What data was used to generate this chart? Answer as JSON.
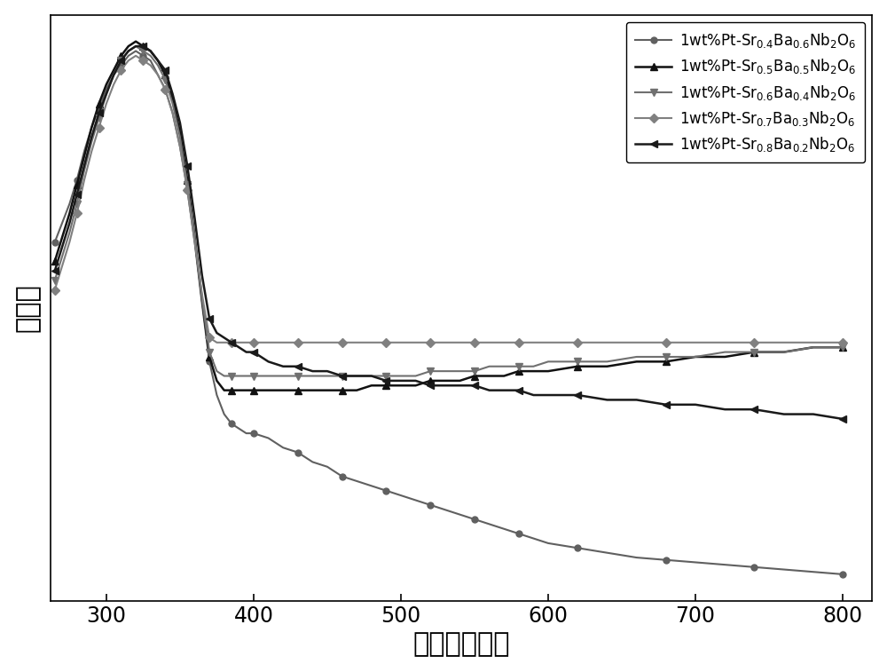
{
  "xlabel": "波长（纳米）",
  "ylabel": "吸光度",
  "xlim": [
    262,
    820
  ],
  "ylim_auto": true,
  "xticks": [
    300,
    400,
    500,
    600,
    700,
    800
  ],
  "background_color": "#ffffff",
  "legend_fontsize": 12,
  "series": [
    {
      "label": "1wt%Pt-Sr$_{0.4}$Ba$_{0.6}$Nb$_2$O$_6$",
      "color": "#606060",
      "marker": "o",
      "markersize": 5,
      "linewidth": 1.5,
      "markevery": 3,
      "x": [
        265,
        270,
        275,
        280,
        285,
        290,
        295,
        300,
        305,
        310,
        315,
        320,
        325,
        330,
        335,
        340,
        345,
        350,
        355,
        360,
        365,
        370,
        375,
        380,
        385,
        390,
        395,
        400,
        410,
        420,
        430,
        440,
        450,
        460,
        470,
        480,
        490,
        500,
        510,
        520,
        530,
        540,
        550,
        560,
        570,
        580,
        590,
        600,
        620,
        640,
        660,
        680,
        700,
        720,
        740,
        760,
        780,
        800
      ],
      "y": [
        0.72,
        0.76,
        0.8,
        0.85,
        0.91,
        0.96,
        1.0,
        1.04,
        1.07,
        1.09,
        1.11,
        1.12,
        1.11,
        1.1,
        1.07,
        1.04,
        0.99,
        0.92,
        0.83,
        0.72,
        0.59,
        0.47,
        0.4,
        0.36,
        0.34,
        0.33,
        0.32,
        0.32,
        0.31,
        0.29,
        0.28,
        0.26,
        0.25,
        0.23,
        0.22,
        0.21,
        0.2,
        0.19,
        0.18,
        0.17,
        0.16,
        0.15,
        0.14,
        0.13,
        0.12,
        0.11,
        0.1,
        0.09,
        0.08,
        0.07,
        0.06,
        0.055,
        0.05,
        0.045,
        0.04,
        0.035,
        0.03,
        0.025
      ]
    },
    {
      "label": "1wt%Pt-Sr$_{0.5}$Ba$_{0.5}$Nb$_2$O$_6$",
      "color": "#111111",
      "marker": "^",
      "markersize": 6,
      "linewidth": 1.8,
      "markevery": 3,
      "x": [
        265,
        270,
        275,
        280,
        285,
        290,
        295,
        300,
        305,
        310,
        315,
        320,
        325,
        330,
        335,
        340,
        345,
        350,
        355,
        360,
        365,
        370,
        375,
        380,
        385,
        390,
        395,
        400,
        410,
        420,
        430,
        440,
        450,
        460,
        470,
        480,
        490,
        500,
        510,
        520,
        530,
        540,
        550,
        560,
        570,
        580,
        590,
        600,
        620,
        640,
        660,
        680,
        700,
        720,
        740,
        760,
        780,
        800
      ],
      "y": [
        0.68,
        0.73,
        0.78,
        0.84,
        0.9,
        0.96,
        1.01,
        1.05,
        1.08,
        1.11,
        1.13,
        1.14,
        1.13,
        1.12,
        1.1,
        1.07,
        1.02,
        0.95,
        0.85,
        0.73,
        0.6,
        0.48,
        0.43,
        0.41,
        0.41,
        0.41,
        0.41,
        0.41,
        0.41,
        0.41,
        0.41,
        0.41,
        0.41,
        0.41,
        0.41,
        0.42,
        0.42,
        0.42,
        0.42,
        0.43,
        0.43,
        0.43,
        0.44,
        0.44,
        0.44,
        0.45,
        0.45,
        0.45,
        0.46,
        0.46,
        0.47,
        0.47,
        0.48,
        0.48,
        0.49,
        0.49,
        0.5,
        0.5
      ]
    },
    {
      "label": "1wt%Pt-Sr$_{0.6}$Ba$_{0.4}$Nb$_2$O$_6$",
      "color": "#707070",
      "marker": "v",
      "markersize": 6,
      "linewidth": 1.5,
      "markevery": 3,
      "x": [
        265,
        270,
        275,
        280,
        285,
        290,
        295,
        300,
        305,
        310,
        315,
        320,
        325,
        330,
        335,
        340,
        345,
        350,
        355,
        360,
        365,
        370,
        375,
        380,
        385,
        390,
        395,
        400,
        410,
        420,
        430,
        440,
        450,
        460,
        470,
        480,
        490,
        500,
        510,
        520,
        530,
        540,
        550,
        560,
        570,
        580,
        590,
        600,
        620,
        640,
        660,
        680,
        700,
        720,
        740,
        760,
        780,
        800
      ],
      "y": [
        0.64,
        0.69,
        0.74,
        0.8,
        0.87,
        0.93,
        0.98,
        1.03,
        1.07,
        1.1,
        1.12,
        1.13,
        1.12,
        1.11,
        1.09,
        1.06,
        1.01,
        0.94,
        0.84,
        0.73,
        0.6,
        0.49,
        0.45,
        0.44,
        0.44,
        0.44,
        0.44,
        0.44,
        0.44,
        0.44,
        0.44,
        0.44,
        0.44,
        0.44,
        0.44,
        0.44,
        0.44,
        0.44,
        0.44,
        0.45,
        0.45,
        0.45,
        0.45,
        0.46,
        0.46,
        0.46,
        0.46,
        0.47,
        0.47,
        0.47,
        0.48,
        0.48,
        0.48,
        0.49,
        0.49,
        0.49,
        0.5,
        0.5
      ]
    },
    {
      "label": "1wt%Pt-Sr$_{0.7}$Ba$_{0.3}$Nb$_2$O$_6$",
      "color": "#808080",
      "marker": "D",
      "markersize": 5,
      "linewidth": 1.5,
      "markevery": 3,
      "x": [
        265,
        270,
        275,
        280,
        285,
        290,
        295,
        300,
        305,
        310,
        315,
        320,
        325,
        330,
        335,
        340,
        345,
        350,
        355,
        360,
        365,
        370,
        375,
        380,
        385,
        390,
        395,
        400,
        410,
        420,
        430,
        440,
        450,
        460,
        470,
        480,
        490,
        500,
        510,
        520,
        530,
        540,
        550,
        560,
        570,
        580,
        590,
        600,
        620,
        640,
        660,
        680,
        700,
        720,
        740,
        760,
        780,
        800
      ],
      "y": [
        0.62,
        0.67,
        0.72,
        0.78,
        0.85,
        0.91,
        0.96,
        1.01,
        1.05,
        1.08,
        1.1,
        1.11,
        1.1,
        1.09,
        1.07,
        1.04,
        0.99,
        0.92,
        0.83,
        0.72,
        0.61,
        0.52,
        0.51,
        0.51,
        0.51,
        0.51,
        0.51,
        0.51,
        0.51,
        0.51,
        0.51,
        0.51,
        0.51,
        0.51,
        0.51,
        0.51,
        0.51,
        0.51,
        0.51,
        0.51,
        0.51,
        0.51,
        0.51,
        0.51,
        0.51,
        0.51,
        0.51,
        0.51,
        0.51,
        0.51,
        0.51,
        0.51,
        0.51,
        0.51,
        0.51,
        0.51,
        0.51,
        0.51
      ]
    },
    {
      "label": "1wt%Pt-Sr$_{0.8}$Ba$_{0.2}$Nb$_2$O$_6$",
      "color": "#1a1a1a",
      "marker": "<",
      "markersize": 6,
      "linewidth": 1.8,
      "markevery": 3,
      "x": [
        265,
        270,
        275,
        280,
        285,
        290,
        295,
        300,
        305,
        310,
        315,
        320,
        325,
        330,
        335,
        340,
        345,
        350,
        355,
        360,
        365,
        370,
        375,
        380,
        385,
        390,
        395,
        400,
        410,
        420,
        430,
        440,
        450,
        460,
        470,
        480,
        490,
        500,
        510,
        520,
        530,
        540,
        550,
        560,
        570,
        580,
        590,
        600,
        620,
        640,
        660,
        680,
        700,
        720,
        740,
        760,
        780,
        800
      ],
      "y": [
        0.66,
        0.71,
        0.76,
        0.82,
        0.88,
        0.94,
        0.99,
        1.03,
        1.07,
        1.1,
        1.12,
        1.13,
        1.13,
        1.12,
        1.1,
        1.08,
        1.03,
        0.97,
        0.88,
        0.77,
        0.65,
        0.56,
        0.53,
        0.52,
        0.51,
        0.5,
        0.49,
        0.49,
        0.47,
        0.46,
        0.46,
        0.45,
        0.45,
        0.44,
        0.44,
        0.44,
        0.43,
        0.43,
        0.43,
        0.42,
        0.42,
        0.42,
        0.42,
        0.41,
        0.41,
        0.41,
        0.4,
        0.4,
        0.4,
        0.39,
        0.39,
        0.38,
        0.38,
        0.37,
        0.37,
        0.36,
        0.36,
        0.35
      ]
    }
  ]
}
